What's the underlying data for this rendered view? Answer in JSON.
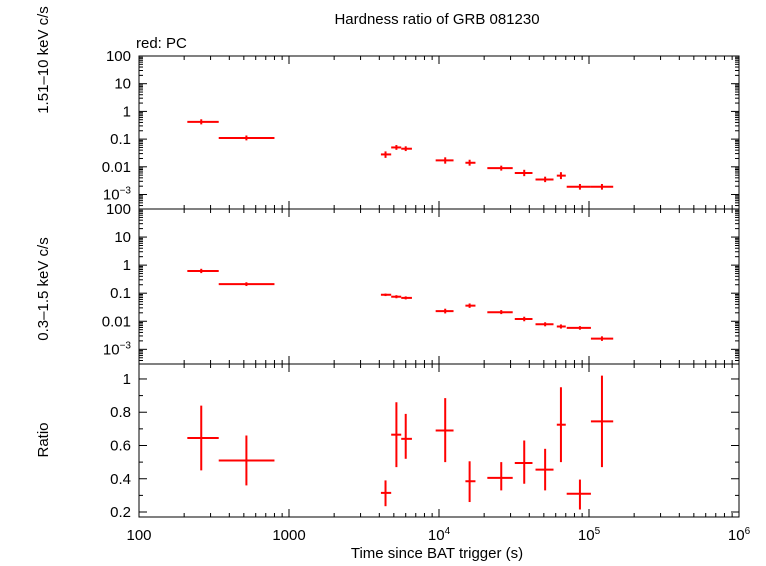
{
  "title": "Hardness ratio of GRB 081230",
  "legend": "red: PC",
  "xlabel": "Time since BAT trigger (s)",
  "x_ticks": [
    {
      "label": "100",
      "sup": "",
      "v": 100
    },
    {
      "label": "1000",
      "sup": "",
      "v": 1000
    },
    {
      "label": "10",
      "sup": "4",
      "v": 10000
    },
    {
      "label": "10",
      "sup": "5",
      "v": 100000
    },
    {
      "label": "10",
      "sup": "6",
      "v": 1000000
    }
  ],
  "chart_data": [
    {
      "type": "scatter",
      "ylabel": "1.51–10 keV c/s",
      "xscale": "log",
      "yscale": "log",
      "xlim": [
        100,
        1000000
      ],
      "ylim": [
        0.0003,
        100
      ],
      "y_ticks": [
        {
          "label": "100",
          "sup": "",
          "v": 100
        },
        {
          "label": "10",
          "sup": "",
          "v": 10
        },
        {
          "label": "1",
          "sup": "",
          "v": 1
        },
        {
          "label": "0.1",
          "sup": "",
          "v": 0.1
        },
        {
          "label": "0.01",
          "sup": "",
          "v": 0.01
        },
        {
          "label": "10",
          "sup": "−3",
          "v": 0.001
        }
      ],
      "series": [
        {
          "color": "#ff0000",
          "points": [
            {
              "x": 260,
              "xlo": 210,
              "xhi": 340,
              "y": 0.42,
              "ylo": 0.34,
              "yhi": 0.52
            },
            {
              "x": 520,
              "xlo": 340,
              "xhi": 800,
              "y": 0.11,
              "ylo": 0.09,
              "yhi": 0.135
            },
            {
              "x": 4400,
              "xlo": 4100,
              "xhi": 4800,
              "y": 0.028,
              "ylo": 0.021,
              "yhi": 0.036
            },
            {
              "x": 5200,
              "xlo": 4800,
              "xhi": 5600,
              "y": 0.05,
              "ylo": 0.041,
              "yhi": 0.061
            },
            {
              "x": 6000,
              "xlo": 5600,
              "xhi": 6600,
              "y": 0.045,
              "ylo": 0.037,
              "yhi": 0.055
            },
            {
              "x": 11000,
              "xlo": 9500,
              "xhi": 12500,
              "y": 0.017,
              "ylo": 0.013,
              "yhi": 0.022
            },
            {
              "x": 16000,
              "xlo": 15000,
              "xhi": 17500,
              "y": 0.014,
              "ylo": 0.011,
              "yhi": 0.018
            },
            {
              "x": 26000,
              "xlo": 21000,
              "xhi": 31000,
              "y": 0.009,
              "ylo": 0.0073,
              "yhi": 0.011
            },
            {
              "x": 37000,
              "xlo": 32000,
              "xhi": 42000,
              "y": 0.006,
              "ylo": 0.0046,
              "yhi": 0.0078
            },
            {
              "x": 51000,
              "xlo": 44000,
              "xhi": 58000,
              "y": 0.0035,
              "ylo": 0.0028,
              "yhi": 0.0044
            },
            {
              "x": 65000,
              "xlo": 61000,
              "xhi": 70000,
              "y": 0.0048,
              "ylo": 0.0036,
              "yhi": 0.0064
            },
            {
              "x": 87000,
              "xlo": 71000,
              "xhi": 103000,
              "y": 0.0019,
              "ylo": 0.0015,
              "yhi": 0.0024
            },
            {
              "x": 122000,
              "xlo": 103000,
              "xhi": 145000,
              "y": 0.0019,
              "ylo": 0.0015,
              "yhi": 0.0024
            }
          ]
        }
      ]
    },
    {
      "type": "scatter",
      "ylabel": "0.3–1.5 keV c/s",
      "xscale": "log",
      "yscale": "log",
      "xlim": [
        100,
        1000000
      ],
      "ylim": [
        0.0003,
        100
      ],
      "y_ticks": [
        {
          "label": "100",
          "sup": "",
          "v": 100
        },
        {
          "label": "10",
          "sup": "",
          "v": 10
        },
        {
          "label": "1",
          "sup": "",
          "v": 1
        },
        {
          "label": "0.1",
          "sup": "",
          "v": 0.1
        },
        {
          "label": "0.01",
          "sup": "",
          "v": 0.01
        },
        {
          "label": "10",
          "sup": "−3",
          "v": 0.001
        }
      ],
      "series": [
        {
          "color": "#ff0000",
          "points": [
            {
              "x": 260,
              "xlo": 210,
              "xhi": 340,
              "y": 0.62,
              "ylo": 0.52,
              "yhi": 0.74
            },
            {
              "x": 520,
              "xlo": 340,
              "xhi": 800,
              "y": 0.21,
              "ylo": 0.18,
              "yhi": 0.245
            },
            {
              "x": 4400,
              "xlo": 4100,
              "xhi": 4800,
              "y": 0.088,
              "ylo": 0.079,
              "yhi": 0.097
            },
            {
              "x": 5200,
              "xlo": 4800,
              "xhi": 5600,
              "y": 0.075,
              "ylo": 0.066,
              "yhi": 0.085
            },
            {
              "x": 6000,
              "xlo": 5600,
              "xhi": 6600,
              "y": 0.068,
              "ylo": 0.06,
              "yhi": 0.077
            },
            {
              "x": 11000,
              "xlo": 9500,
              "xhi": 12500,
              "y": 0.023,
              "ylo": 0.019,
              "yhi": 0.028
            },
            {
              "x": 16000,
              "xlo": 15000,
              "xhi": 17500,
              "y": 0.036,
              "ylo": 0.03,
              "yhi": 0.043
            },
            {
              "x": 26000,
              "xlo": 21000,
              "xhi": 31000,
              "y": 0.021,
              "ylo": 0.018,
              "yhi": 0.025
            },
            {
              "x": 37000,
              "xlo": 32000,
              "xhi": 42000,
              "y": 0.012,
              "ylo": 0.01,
              "yhi": 0.0145
            },
            {
              "x": 51000,
              "xlo": 44000,
              "xhi": 58000,
              "y": 0.0078,
              "ylo": 0.0066,
              "yhi": 0.0092
            },
            {
              "x": 65000,
              "xlo": 61000,
              "xhi": 70000,
              "y": 0.0065,
              "ylo": 0.0055,
              "yhi": 0.0077
            },
            {
              "x": 87000,
              "xlo": 71000,
              "xhi": 103000,
              "y": 0.0058,
              "ylo": 0.005,
              "yhi": 0.0067
            },
            {
              "x": 122000,
              "xlo": 103000,
              "xhi": 145000,
              "y": 0.0024,
              "ylo": 0.002,
              "yhi": 0.0029
            }
          ]
        }
      ]
    },
    {
      "type": "scatter",
      "ylabel": "Ratio",
      "xscale": "log",
      "yscale": "linear",
      "xlim": [
        100,
        1000000
      ],
      "ylim": [
        0.17,
        1.09
      ],
      "y_ticks": [
        {
          "label": "1",
          "sup": "",
          "v": 1
        },
        {
          "label": "0.8",
          "sup": "",
          "v": 0.8
        },
        {
          "label": "0.6",
          "sup": "",
          "v": 0.6
        },
        {
          "label": "0.4",
          "sup": "",
          "v": 0.4
        },
        {
          "label": "0.2",
          "sup": "",
          "v": 0.2
        }
      ],
      "series": [
        {
          "color": "#ff0000",
          "points": [
            {
              "x": 260,
              "xlo": 210,
              "xhi": 340,
              "y": 0.645,
              "ylo": 0.45,
              "yhi": 0.84
            },
            {
              "x": 520,
              "xlo": 340,
              "xhi": 800,
              "y": 0.51,
              "ylo": 0.36,
              "yhi": 0.66
            },
            {
              "x": 4400,
              "xlo": 4100,
              "xhi": 4800,
              "y": 0.315,
              "ylo": 0.235,
              "yhi": 0.39
            },
            {
              "x": 5200,
              "xlo": 4800,
              "xhi": 5600,
              "y": 0.665,
              "ylo": 0.47,
              "yhi": 0.86
            },
            {
              "x": 6000,
              "xlo": 5600,
              "xhi": 6600,
              "y": 0.64,
              "ylo": 0.52,
              "yhi": 0.79
            },
            {
              "x": 11000,
              "xlo": 9500,
              "xhi": 12500,
              "y": 0.69,
              "ylo": 0.5,
              "yhi": 0.885
            },
            {
              "x": 16000,
              "xlo": 15000,
              "xhi": 17500,
              "y": 0.385,
              "ylo": 0.26,
              "yhi": 0.505
            },
            {
              "x": 26000,
              "xlo": 21000,
              "xhi": 31000,
              "y": 0.405,
              "ylo": 0.33,
              "yhi": 0.5
            },
            {
              "x": 37000,
              "xlo": 32000,
              "xhi": 42000,
              "y": 0.495,
              "ylo": 0.37,
              "yhi": 0.63
            },
            {
              "x": 51000,
              "xlo": 44000,
              "xhi": 58000,
              "y": 0.455,
              "ylo": 0.33,
              "yhi": 0.58
            },
            {
              "x": 65000,
              "xlo": 61000,
              "xhi": 70000,
              "y": 0.725,
              "ylo": 0.5,
              "yhi": 0.95
            },
            {
              "x": 87000,
              "xlo": 71000,
              "xhi": 103000,
              "y": 0.31,
              "ylo": 0.215,
              "yhi": 0.395
            },
            {
              "x": 122000,
              "xlo": 103000,
              "xhi": 145000,
              "y": 0.745,
              "ylo": 0.47,
              "yhi": 1.02
            }
          ]
        }
      ]
    }
  ]
}
